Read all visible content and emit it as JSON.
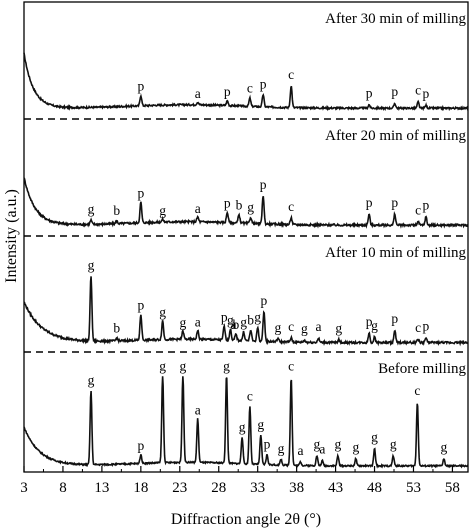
{
  "chart_data": {
    "type": "line",
    "xlabel": "Diffraction angle 2θ (°)",
    "ylabel": "Intensity (a.u.)",
    "xlim": [
      3,
      60
    ],
    "xticks": [
      3,
      8,
      13,
      18,
      23,
      28,
      33,
      38,
      43,
      48,
      53,
      58
    ],
    "yticks": "none",
    "grid": false,
    "legend": "none",
    "line_color": "#111111",
    "panel_separator": "dashed",
    "panels": [
      {
        "name": "After 30 min of milling",
        "labels": [
          {
            "text": "p",
            "x": 18.0
          },
          {
            "text": "a",
            "x": 25.3
          },
          {
            "text": "p",
            "x": 29.1
          },
          {
            "text": "c",
            "x": 32.0
          },
          {
            "text": "p",
            "x": 33.7
          },
          {
            "text": "c",
            "x": 37.3
          },
          {
            "text": "p",
            "x": 47.3
          },
          {
            "text": "p",
            "x": 50.6
          },
          {
            "text": "c",
            "x": 53.6
          },
          {
            "text": "p",
            "x": 54.6
          }
        ]
      },
      {
        "name": "After 20 min of milling",
        "labels": [
          {
            "text": "g",
            "x": 11.6
          },
          {
            "text": "b",
            "x": 14.9
          },
          {
            "text": "p",
            "x": 18.0
          },
          {
            "text": "g",
            "x": 20.8
          },
          {
            "text": "a",
            "x": 25.3
          },
          {
            "text": "p",
            "x": 29.1
          },
          {
            "text": "b",
            "x": 30.6
          },
          {
            "text": "g",
            "x": 32.1
          },
          {
            "text": "p",
            "x": 33.7
          },
          {
            "text": "c",
            "x": 37.3
          },
          {
            "text": "p",
            "x": 47.3
          },
          {
            "text": "p",
            "x": 50.6
          },
          {
            "text": "c",
            "x": 53.6
          },
          {
            "text": "p",
            "x": 54.6
          }
        ]
      },
      {
        "name": "After 10 min of milling",
        "labels": [
          {
            "text": "g",
            "x": 11.6
          },
          {
            "text": "b",
            "x": 14.9
          },
          {
            "text": "p",
            "x": 18.0
          },
          {
            "text": "g",
            "x": 20.8
          },
          {
            "text": "g",
            "x": 23.4
          },
          {
            "text": "a",
            "x": 25.3
          },
          {
            "text": "p",
            "x": 28.7
          },
          {
            "text": "g",
            "x": 29.5
          },
          {
            "text": "b",
            "x": 30.2
          },
          {
            "text": "a",
            "x": 29.9
          },
          {
            "text": "g",
            "x": 31.2
          },
          {
            "text": "b",
            "x": 32.1
          },
          {
            "text": "g",
            "x": 33.0
          },
          {
            "text": "p",
            "x": 33.8
          },
          {
            "text": "g",
            "x": 35.6
          },
          {
            "text": "c",
            "x": 37.3
          },
          {
            "text": "g",
            "x": 39.0
          },
          {
            "text": "a",
            "x": 40.8
          },
          {
            "text": "g",
            "x": 43.4
          },
          {
            "text": "p",
            "x": 47.3
          },
          {
            "text": "g",
            "x": 48.0
          },
          {
            "text": "p",
            "x": 50.6
          },
          {
            "text": "c",
            "x": 53.6
          },
          {
            "text": "p",
            "x": 54.6
          }
        ]
      },
      {
        "name": "Before milling",
        "labels": [
          {
            "text": "g",
            "x": 11.6
          },
          {
            "text": "g",
            "x": 20.8
          },
          {
            "text": "g",
            "x": 23.4
          },
          {
            "text": "g",
            "x": 29.0
          },
          {
            "text": "c",
            "x": 37.3
          },
          {
            "text": "p",
            "x": 18.0
          },
          {
            "text": "a",
            "x": 25.3
          },
          {
            "text": "c",
            "x": 32.0
          },
          {
            "text": "g",
            "x": 31.0
          },
          {
            "text": "g",
            "x": 33.4
          },
          {
            "text": "p",
            "x": 34.2
          },
          {
            "text": "g",
            "x": 36.0
          },
          {
            "text": "a",
            "x": 38.5
          },
          {
            "text": "g",
            "x": 40.6
          },
          {
            "text": "a",
            "x": 41.3
          },
          {
            "text": "g",
            "x": 43.3
          },
          {
            "text": "g",
            "x": 45.6
          },
          {
            "text": "g",
            "x": 48.0
          },
          {
            "text": "g",
            "x": 50.4
          },
          {
            "text": "c",
            "x": 53.5
          },
          {
            "text": "g",
            "x": 56.9
          }
        ]
      }
    ],
    "traces": [
      {
        "name": "After 30 min of milling",
        "baseline": 0.1,
        "background": {
          "amp": 0.8,
          "decay": 1.2,
          "ramp_end": 0.5
        },
        "peaks": [
          [
            18.0,
            0.15
          ],
          [
            25.3,
            0.04
          ],
          [
            29.1,
            0.07
          ],
          [
            32.0,
            0.12
          ],
          [
            33.7,
            0.18
          ],
          [
            37.3,
            0.32
          ],
          [
            47.3,
            0.05
          ],
          [
            50.6,
            0.07
          ],
          [
            53.6,
            0.09
          ],
          [
            54.6,
            0.04
          ]
        ],
        "noise": 0.025
      },
      {
        "name": "After 20 min of milling",
        "baseline": 0.1,
        "background": {
          "amp": 0.7,
          "decay": 1.4,
          "ramp_end": 0.5
        },
        "peaks": [
          [
            11.6,
            0.06
          ],
          [
            14.9,
            0.04
          ],
          [
            18.0,
            0.3
          ],
          [
            20.8,
            0.04
          ],
          [
            25.3,
            0.07
          ],
          [
            29.1,
            0.15
          ],
          [
            30.6,
            0.12
          ],
          [
            32.1,
            0.09
          ],
          [
            33.7,
            0.42
          ],
          [
            37.3,
            0.1
          ],
          [
            47.3,
            0.16
          ],
          [
            50.6,
            0.16
          ],
          [
            53.6,
            0.05
          ],
          [
            54.6,
            0.12
          ]
        ],
        "noise": 0.03
      },
      {
        "name": "After 10 min of milling",
        "baseline": 0.08,
        "background": {
          "amp": 0.6,
          "decay": 2.3,
          "ramp_end": 0.45
        },
        "peaks": [
          [
            11.6,
            0.97
          ],
          [
            14.9,
            0.04
          ],
          [
            18.0,
            0.38
          ],
          [
            20.8,
            0.28
          ],
          [
            23.4,
            0.12
          ],
          [
            25.3,
            0.13
          ],
          [
            28.7,
            0.2
          ],
          [
            29.5,
            0.16
          ],
          [
            30.2,
            0.09
          ],
          [
            31.2,
            0.13
          ],
          [
            32.1,
            0.16
          ],
          [
            33.0,
            0.2
          ],
          [
            33.8,
            0.45
          ],
          [
            35.6,
            0.05
          ],
          [
            37.3,
            0.06
          ],
          [
            39.0,
            0.03
          ],
          [
            40.8,
            0.06
          ],
          [
            43.4,
            0.04
          ],
          [
            47.3,
            0.14
          ],
          [
            48.0,
            0.08
          ],
          [
            50.6,
            0.18
          ],
          [
            53.6,
            0.05
          ],
          [
            54.6,
            0.07
          ]
        ],
        "noise": 0.03
      },
      {
        "name": "Before milling",
        "baseline": 0.03,
        "background": {
          "amp": 0.55,
          "decay": 2.0,
          "ramp_end": 0.4
        },
        "peaks": [
          [
            11.6,
            1.05
          ],
          [
            18.0,
            0.12
          ],
          [
            20.8,
            1.25
          ],
          [
            23.4,
            1.25
          ],
          [
            25.3,
            0.62
          ],
          [
            29.0,
            1.25
          ],
          [
            31.0,
            0.38
          ],
          [
            32.0,
            0.82
          ],
          [
            33.4,
            0.42
          ],
          [
            34.2,
            0.14
          ],
          [
            36.0,
            0.08
          ],
          [
            37.3,
            1.25
          ],
          [
            38.5,
            0.05
          ],
          [
            40.6,
            0.14
          ],
          [
            41.3,
            0.07
          ],
          [
            43.3,
            0.14
          ],
          [
            45.6,
            0.1
          ],
          [
            48.0,
            0.24
          ],
          [
            50.4,
            0.14
          ],
          [
            53.5,
            0.9
          ],
          [
            56.9,
            0.1
          ]
        ],
        "noise": 0.02
      }
    ]
  }
}
